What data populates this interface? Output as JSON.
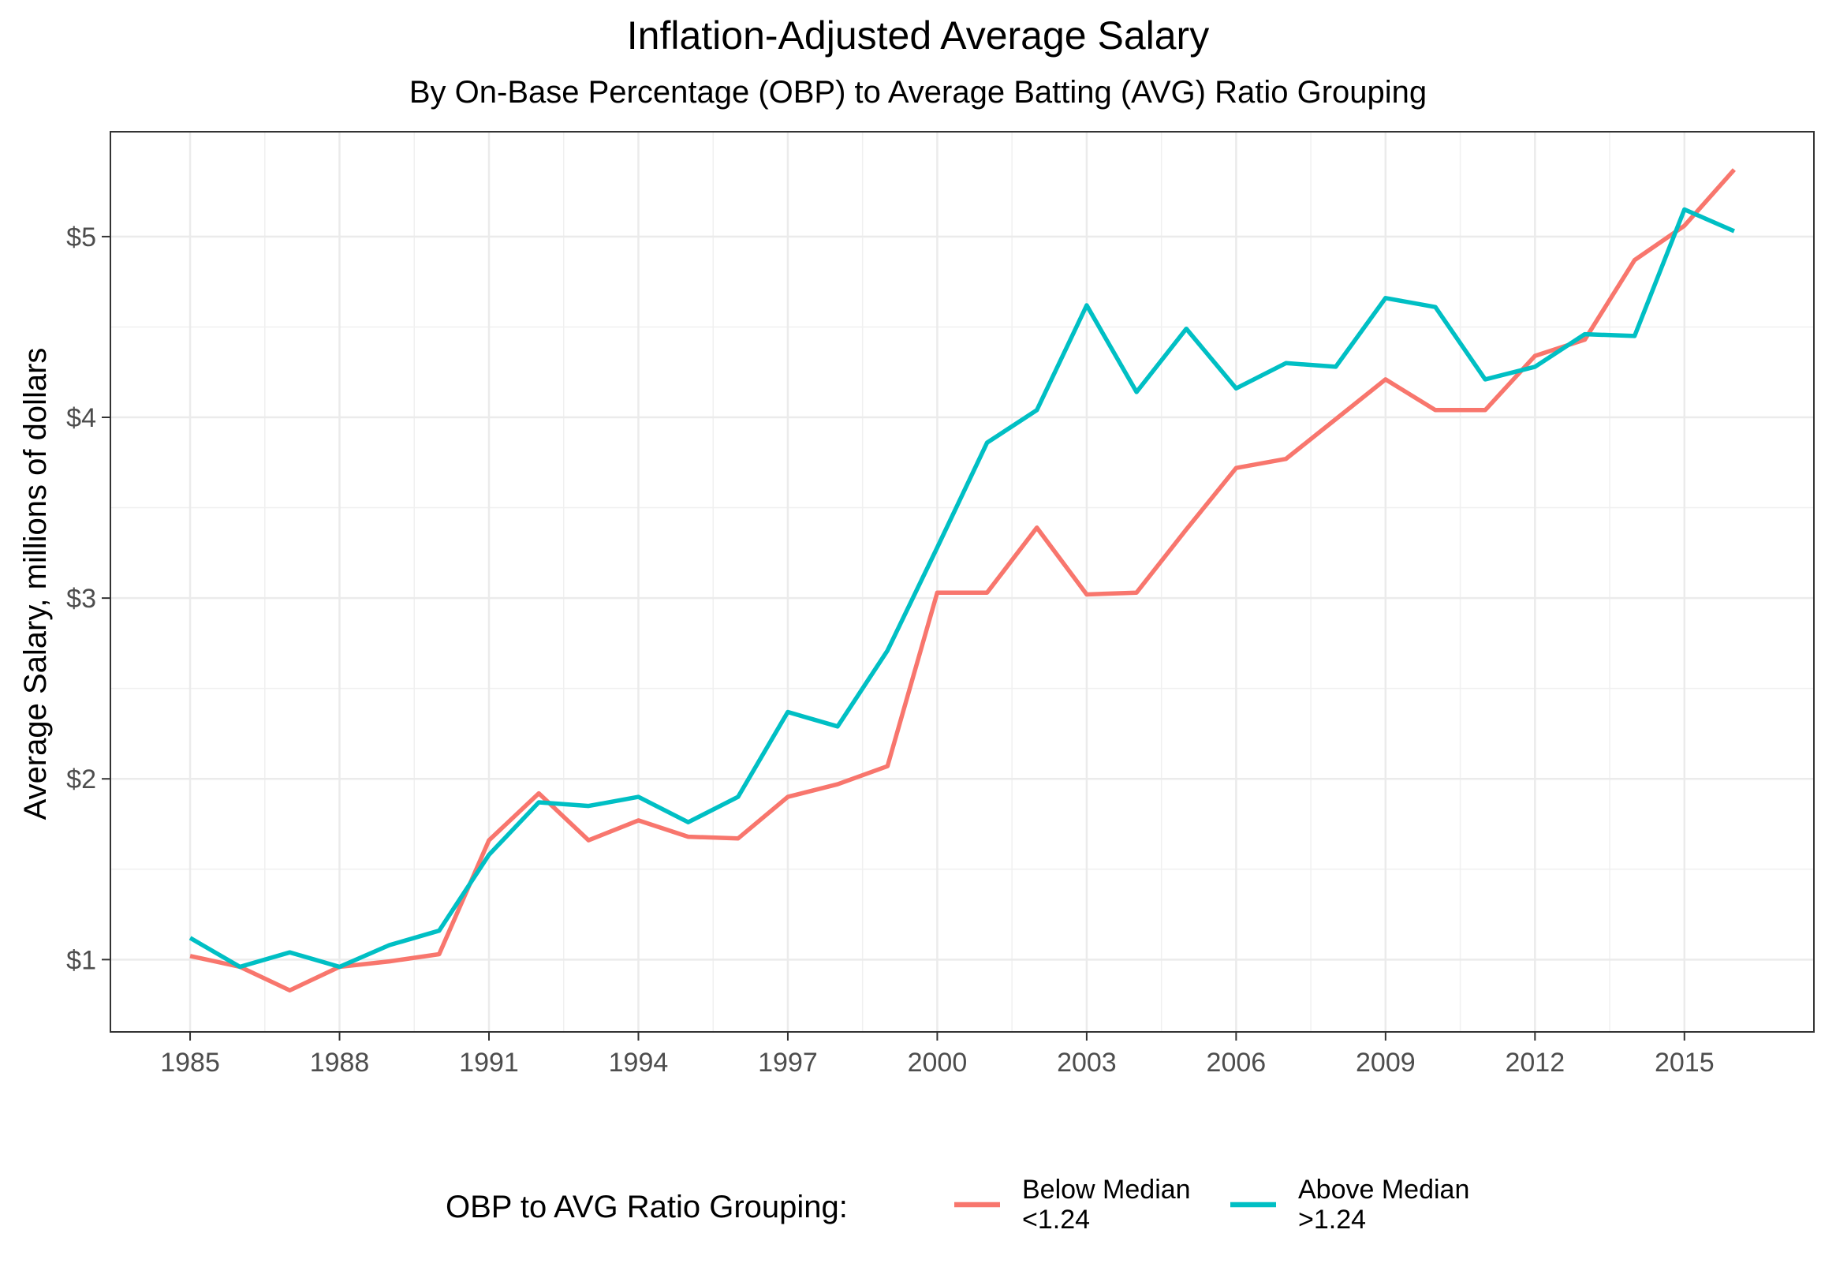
{
  "chart_data": {
    "type": "line",
    "title": "Inflation-Adjusted Average Salary",
    "subtitle": "By On-Base Percentage (OBP) to Average Batting (AVG) Ratio Grouping",
    "xlabel": "",
    "ylabel": "Average Salary, millions of dollars",
    "x": [
      1985,
      1986,
      1987,
      1988,
      1989,
      1990,
      1991,
      1992,
      1993,
      1994,
      1995,
      1996,
      1997,
      1998,
      1999,
      2000,
      2001,
      2002,
      2003,
      2004,
      2005,
      2006,
      2007,
      2008,
      2009,
      2010,
      2011,
      2012,
      2013,
      2014,
      2015,
      2016
    ],
    "xlim": [
      1983.4,
      2017.6
    ],
    "ylim": [
      0.6,
      5.58
    ],
    "x_ticks": [
      1985,
      1988,
      1991,
      1994,
      1997,
      2000,
      2003,
      2006,
      2009,
      2012,
      2015
    ],
    "x_tick_labels": [
      "1985",
      "1988",
      "1991",
      "1994",
      "1997",
      "2000",
      "2003",
      "2006",
      "2009",
      "2012",
      "2015"
    ],
    "y_ticks": [
      1,
      2,
      3,
      4,
      5
    ],
    "y_tick_labels": [
      "$1",
      "$2",
      "$3",
      "$4",
      "$5"
    ],
    "grid": true,
    "legend_position": "bottom",
    "legend_title": "OBP to AVG Ratio Grouping:",
    "series": [
      {
        "name": "Below Median",
        "name_line2": "<1.24",
        "color": "#F8766D",
        "values": [
          1.02,
          0.96,
          0.83,
          0.96,
          0.99,
          1.03,
          1.66,
          1.92,
          1.66,
          1.77,
          1.68,
          1.67,
          1.9,
          1.97,
          2.07,
          3.03,
          3.03,
          3.39,
          3.02,
          3.03,
          3.38,
          3.72,
          3.77,
          3.99,
          4.21,
          4.04,
          4.04,
          4.34,
          4.43,
          4.87,
          5.06,
          5.37
        ]
      },
      {
        "name": "Above Median",
        "name_line2": ">1.24",
        "color": "#00BFC4",
        "values": [
          1.12,
          0.96,
          1.04,
          0.96,
          1.08,
          1.16,
          1.58,
          1.87,
          1.85,
          1.9,
          1.76,
          1.9,
          2.37,
          2.29,
          2.71,
          3.28,
          3.86,
          4.04,
          4.62,
          4.14,
          4.49,
          4.16,
          4.3,
          4.28,
          4.66,
          4.61,
          4.21,
          4.28,
          4.46,
          4.45,
          5.15,
          5.03
        ]
      }
    ]
  }
}
